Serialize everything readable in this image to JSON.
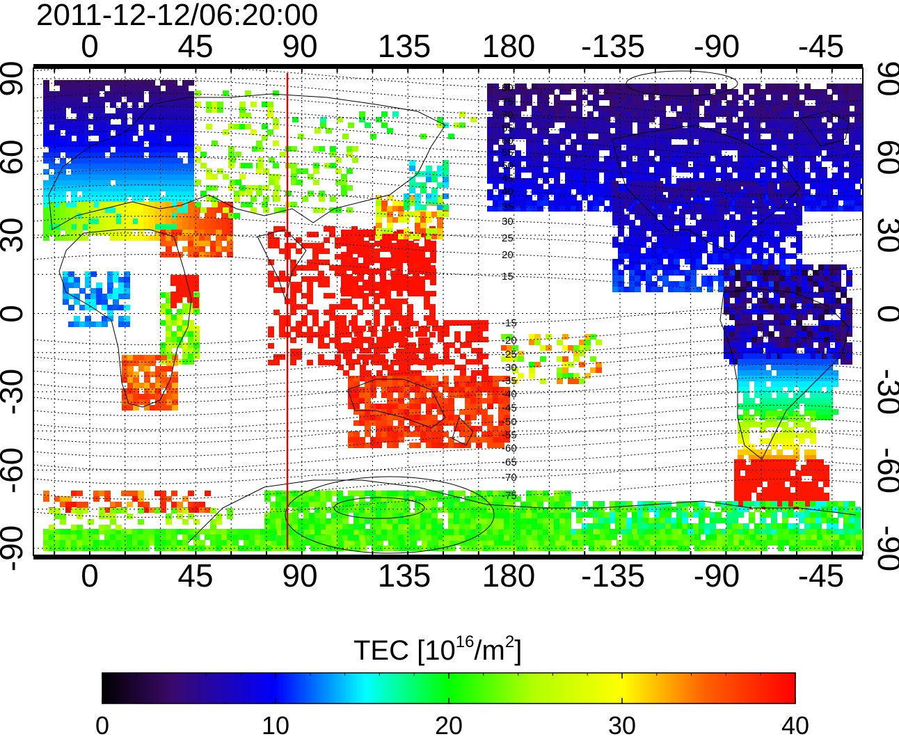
{
  "title": "2011-12-12/06:20:00",
  "map": {
    "top_lon_labels": [
      "0",
      "45",
      "90",
      "135",
      "180",
      "-135",
      "-90",
      "-45"
    ],
    "bottom_lon_labels": [
      "0",
      "45",
      "90",
      "135",
      "180",
      "-135",
      "-90",
      "-45"
    ],
    "left_lat_labels": [
      "90",
      "60",
      "30",
      "0",
      "-30",
      "-60",
      "-90"
    ],
    "right_lat_labels": [
      "90",
      "60",
      "30",
      "0",
      "-30",
      "-60",
      "-90"
    ],
    "contour_labels": [
      "80",
      "75",
      "70",
      "65",
      "60",
      "55",
      "50",
      "45",
      "40",
      "35",
      "30",
      "25",
      "20",
      "15",
      "-15",
      "-20",
      "-25",
      "-30",
      "-35",
      "-40",
      "-45",
      "-50",
      "-55",
      "-60",
      "-65",
      "-70",
      "-75"
    ],
    "terminator_lon": 85,
    "grid": true
  },
  "colorbar": {
    "label_prefix": "TEC  [10",
    "label_sup1": "16",
    "label_mid": "/m",
    "label_sup2": "2",
    "label_suffix": "]",
    "ticks": [
      "0",
      "10",
      "20",
      "30",
      "40"
    ],
    "min": 0,
    "max": 40
  },
  "colors": {
    "terminator": "#e00000",
    "colormap": [
      "#000000",
      "#4b0082",
      "#0000ff",
      "#00ffff",
      "#00ff00",
      "#ffff00",
      "#ff0000"
    ]
  }
}
